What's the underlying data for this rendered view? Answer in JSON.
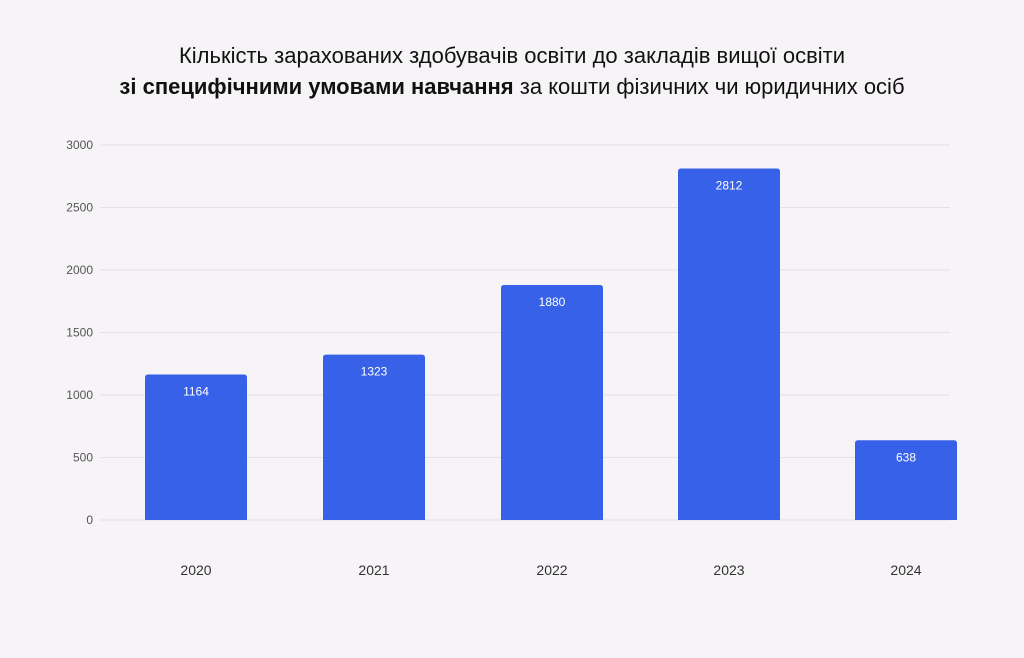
{
  "title": {
    "line1": "Кількість зарахованих здобувачів освіти до закладів вищої освіти",
    "line2_bold": "зі специфічними умовами навчання",
    "line2_rest": " за кошти фізичних чи юридичних осіб"
  },
  "colors": {
    "bar": "#3761e9",
    "grid": "#e4e1e6",
    "background": "#f6f4f6"
  },
  "chart_data": {
    "type": "bar",
    "title": "Кількість зарахованих здобувачів освіти до закладів вищої освіти зі специфічними умовами навчання за кошти фізичних чи юридичних осіб",
    "categories": [
      "2020",
      "2021",
      "2022",
      "2023",
      "2024"
    ],
    "values": [
      1164,
      1323,
      1880,
      2812,
      638
    ],
    "data_labels": [
      "1164",
      "1323",
      "1880",
      "2812",
      "638"
    ],
    "y_ticks": [
      "0",
      "500",
      "1000",
      "1500",
      "2000",
      "2500",
      "3000"
    ],
    "ylim": [
      0,
      3000
    ],
    "xlabel": "",
    "ylabel": "",
    "grid": true,
    "legend": "none"
  }
}
